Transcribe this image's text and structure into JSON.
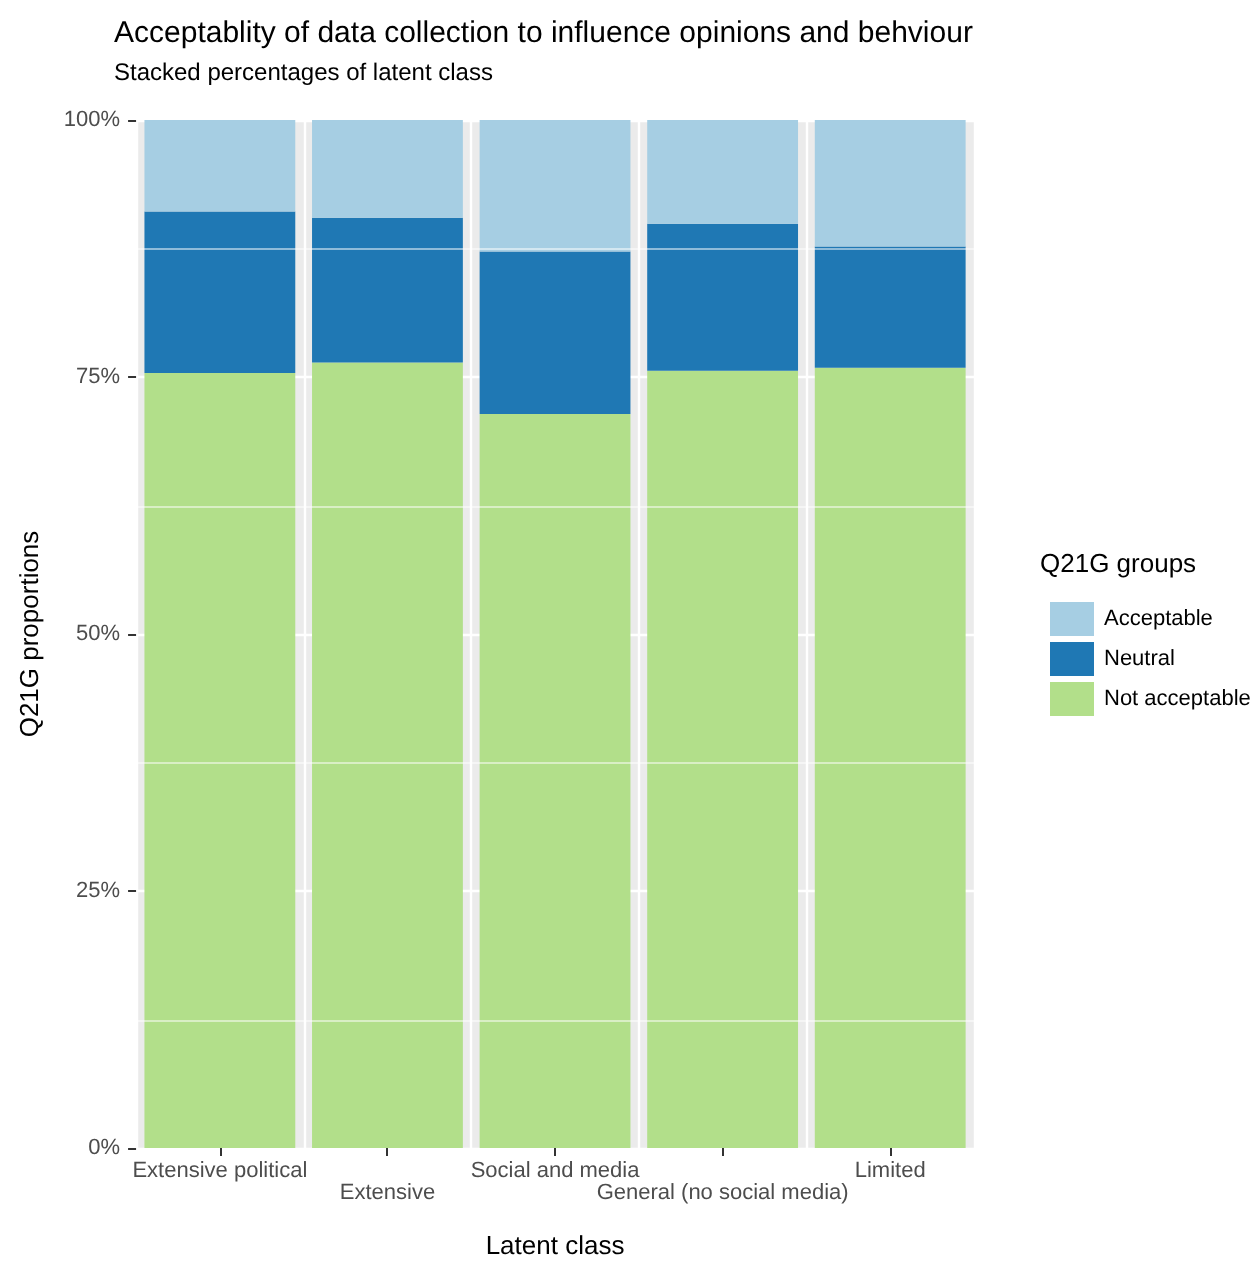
{
  "chart_data": {
    "type": "bar",
    "title": "Acceptablity of data collection to influence opinions and behviour",
    "subtitle": "Stacked percentages of latent class",
    "xlabel": "Latent class",
    "ylabel": "Q21G proportions",
    "legend_title": "Q21G groups",
    "categories": [
      "Extensive political",
      "Extensive",
      "Social and media",
      "General (no social media)",
      "Limited"
    ],
    "stacked": true,
    "series": [
      {
        "name": "Not acceptable",
        "color": "#b2df8a",
        "values": [
          75.4,
          76.4,
          71.4,
          75.6,
          75.9
        ]
      },
      {
        "name": "Neutral",
        "color": "#1f78b4",
        "values": [
          15.7,
          14.1,
          15.8,
          14.3,
          11.8
        ]
      },
      {
        "name": "Acceptable",
        "color": "#a6cee3",
        "values": [
          8.9,
          9.5,
          12.8,
          10.1,
          12.3
        ]
      }
    ],
    "ylim": [
      0,
      100
    ],
    "yticks": [
      {
        "value": 0,
        "label": "0%"
      },
      {
        "value": 25,
        "label": "25%"
      },
      {
        "value": 50,
        "label": "50%"
      },
      {
        "value": 75,
        "label": "75%"
      },
      {
        "value": 100,
        "label": "100%"
      }
    ],
    "grid": true,
    "legend": "right"
  }
}
